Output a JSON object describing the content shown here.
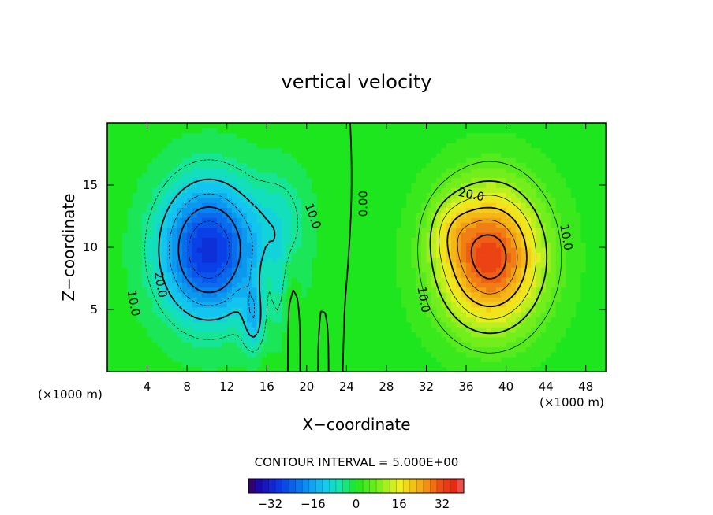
{
  "chart_data": {
    "type": "heatmap",
    "title": "vertical velocity",
    "xlabel": "X−coordinate",
    "ylabel": "Z−coordinate",
    "x_unit_label": "(×1000 m)",
    "x_unit_label_right": "(×1000 m)",
    "xlim": [
      0,
      50
    ],
    "ylim": [
      0,
      20
    ],
    "x_ticks": [
      4,
      8,
      12,
      16,
      20,
      24,
      28,
      32,
      36,
      40,
      44,
      48
    ],
    "x_tick_labels": [
      "4",
      "8",
      "12",
      "16",
      "20",
      "24",
      "28",
      "32",
      "36",
      "40",
      "44",
      "48"
    ],
    "y_ticks": [
      5,
      10,
      15
    ],
    "y_tick_labels": [
      "5",
      "10",
      "15"
    ],
    "contour_interval_text": "CONTOUR INTERVAL = 5.000E+00",
    "contour_interval": 5.0,
    "color_range": [
      -40,
      40
    ],
    "colorbar_ticks": [
      -32,
      -16,
      0,
      16,
      32
    ],
    "colorbar_tick_labels": [
      "−32",
      "−16",
      "0",
      "16",
      "32"
    ],
    "contour_labels": [
      {
        "text": "10.0",
        "x": 2.6,
        "y": 5.5,
        "angle": 80
      },
      {
        "text": "20.0",
        "x": 5.3,
        "y": 7.0,
        "angle": 80
      },
      {
        "text": "10.0",
        "x": 20.6,
        "y": 12.5,
        "angle": 70
      },
      {
        "text": "0.00",
        "x": 25.7,
        "y": 13.5,
        "angle": -90
      },
      {
        "text": "20.0",
        "x": 36.5,
        "y": 14.2,
        "angle": 12
      },
      {
        "text": "10.0",
        "x": 46.0,
        "y": 10.8,
        "angle": 80
      },
      {
        "text": "10.0",
        "x": 31.7,
        "y": 5.8,
        "angle": 80
      }
    ],
    "features": [
      {
        "name": "downdraft-core",
        "x": 10.5,
        "y": 10.0,
        "peak": -30
      },
      {
        "name": "updraft-core",
        "x": 38.5,
        "y": 9.5,
        "peak": 32
      }
    ]
  }
}
